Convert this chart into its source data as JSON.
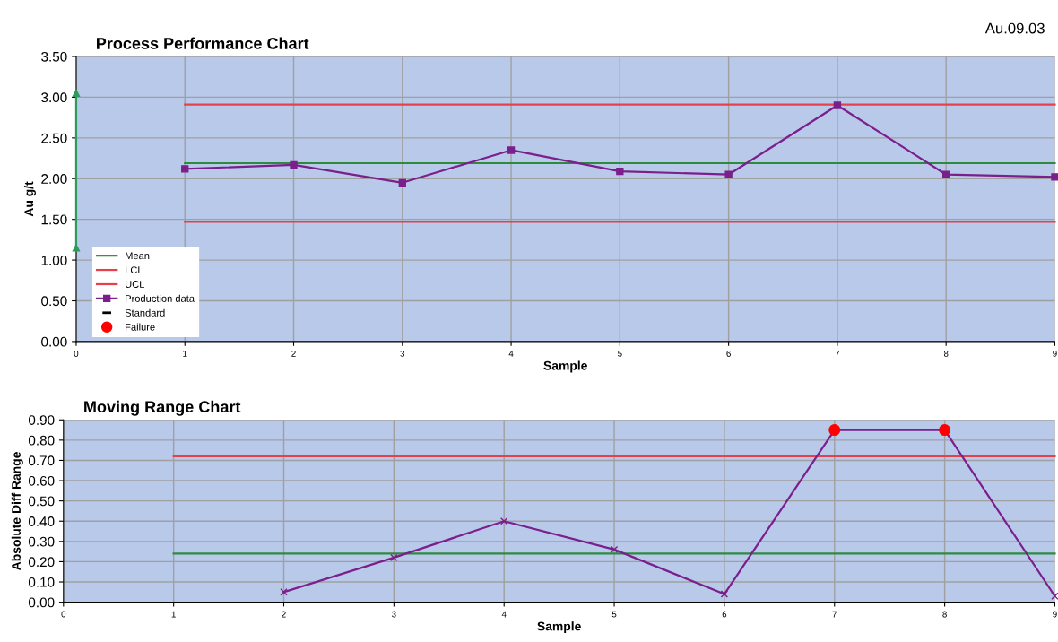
{
  "chart_data": [
    {
      "type": "line",
      "title": "Process Performance Chart",
      "xlabel": "Sample",
      "ylabel": "Au g/t",
      "annotations": [
        "Au.09.03"
      ],
      "xlim": [
        0,
        9
      ],
      "xticks": [
        0,
        1,
        2,
        3,
        4,
        5,
        6,
        7,
        8,
        9
      ],
      "ylim": [
        0,
        3.5
      ],
      "yticks": [
        {
          "value": 0,
          "label": "0.00"
        },
        {
          "value": 0.5,
          "label": "0.50"
        },
        {
          "value": 1,
          "label": "1.00"
        },
        {
          "value": 1.5,
          "label": "1.50"
        },
        {
          "value": 2,
          "label": "2.00"
        },
        {
          "value": 2.5,
          "label": "2.50"
        },
        {
          "value": 3,
          "label": "3.00"
        },
        {
          "value": 3.5,
          "label": "3.50"
        }
      ],
      "grid": true,
      "legend": "bottom left",
      "series": [
        {
          "name": "Mean",
          "color": "#2e8b3e",
          "x": [
            1,
            9
          ],
          "values": [
            2.19,
            2.19
          ],
          "marker": "none"
        },
        {
          "name": "LCL",
          "color": "#e8404a",
          "x": [
            1,
            9
          ],
          "values": [
            1.47,
            1.47
          ],
          "marker": "none"
        },
        {
          "name": "UCL",
          "color": "#e8404a",
          "x": [
            1,
            9
          ],
          "values": [
            2.91,
            2.91
          ],
          "marker": "none"
        },
        {
          "name": "Production data",
          "color": "#7b1f8c",
          "x": [
            1,
            2,
            3,
            4,
            5,
            6,
            7,
            8,
            9
          ],
          "values": [
            2.12,
            2.17,
            1.95,
            2.35,
            2.09,
            2.05,
            2.9,
            2.05,
            2.02
          ],
          "marker": "square"
        },
        {
          "type": "scatter",
          "name": "Standard",
          "color": "#000000",
          "marker": "dash"
        },
        {
          "type": "scatter",
          "name": "Failure",
          "color": "#ff0000",
          "marker": "circle"
        },
        {
          "color": "#2e9b5e",
          "x": [
            0,
            0
          ],
          "values": [
            1.15,
            3.05
          ],
          "marker": "triangle"
        }
      ]
    },
    {
      "type": "line",
      "title": "Moving Range Chart",
      "xlabel": "Sample",
      "ylabel": "Absolute Diff Range",
      "xlim": [
        0,
        9
      ],
      "xticks": [
        0,
        1,
        2,
        3,
        4,
        5,
        6,
        7,
        8,
        9
      ],
      "ylim": [
        0,
        0.9
      ],
      "yticks": [
        {
          "value": 0,
          "label": "0.00"
        },
        {
          "value": 0.1,
          "label": "0.10"
        },
        {
          "value": 0.2,
          "label": "0.20"
        },
        {
          "value": 0.3,
          "label": "0.30"
        },
        {
          "value": 0.4,
          "label": "0.40"
        },
        {
          "value": 0.5,
          "label": "0.50"
        },
        {
          "value": 0.6,
          "label": "0.60"
        },
        {
          "value": 0.7,
          "label": "0.70"
        },
        {
          "value": 0.8,
          "label": "0.80"
        },
        {
          "value": 0.9,
          "label": "0.90"
        }
      ],
      "grid": true,
      "series": [
        {
          "color": "#2e8b3e",
          "x": [
            1,
            9
          ],
          "values": [
            0.24,
            0.24
          ],
          "marker": "none"
        },
        {
          "color": "#e8404a",
          "x": [
            1,
            9
          ],
          "values": [
            0.72,
            0.72
          ],
          "marker": "none"
        },
        {
          "color": "#7b1f8c",
          "x": [
            2,
            3,
            4,
            5,
            6,
            7,
            8,
            9
          ],
          "values": [
            0.05,
            0.22,
            0.4,
            0.26,
            0.04,
            0.85,
            0.85,
            0.03
          ],
          "marker": "cross"
        },
        {
          "type": "scatter",
          "color": "#ff0000",
          "x": [
            7,
            8
          ],
          "values": [
            0.85,
            0.85
          ],
          "marker": "circle"
        }
      ]
    }
  ]
}
